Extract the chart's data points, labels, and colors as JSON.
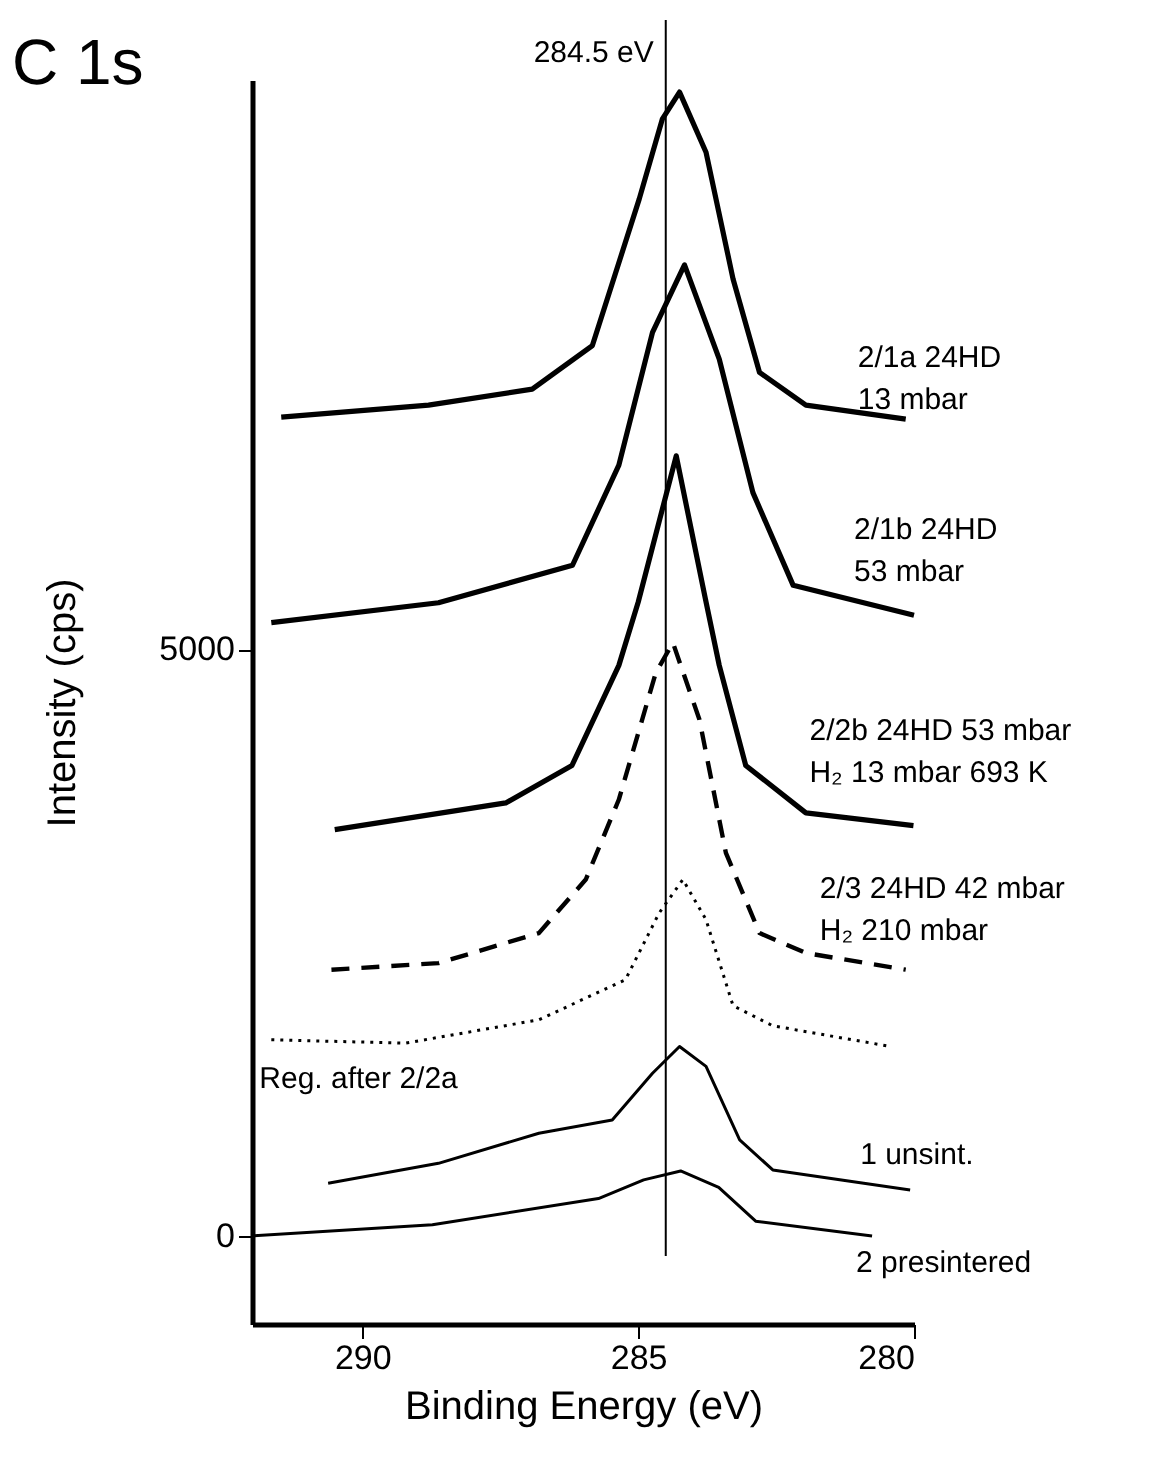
{
  "chart_data": {
    "type": "line",
    "title": "C 1s",
    "xlabel": "Binding Energy (eV)",
    "ylabel": "Intensity (cps)",
    "xlim": [
      292,
      280
    ],
    "xticks": [
      290,
      285,
      280
    ],
    "ylim": [
      -750,
      9850
    ],
    "yticks": [
      0,
      {
        "value": 5000,
        "label": "5000"
      }
    ],
    "grid": false,
    "legend": false,
    "marker": "none",
    "ref_lines": [
      {
        "axis": "x",
        "value": 284.5,
        "label": "284.5 eV",
        "color": "#000000",
        "line_style": "solid"
      }
    ],
    "series": [
      {
        "name": "2/1a 24HD\n13 mbar",
        "color": "#000000",
        "line_style": "solid",
        "x": [
          291.47,
          288.8,
          286.92,
          285.83,
          284.98,
          284.56,
          284.25,
          283.77,
          283.28,
          282.8,
          281.96,
          280.15
        ],
        "values": [
          6977,
          7080,
          7216,
          7587,
          8837,
          9519,
          9747,
          9235,
          8155,
          7358,
          7080,
          6960
        ]
      },
      {
        "name": "2/1b 24HD\n53 mbar",
        "color": "#000000",
        "line_style": "solid",
        "x": [
          291.65,
          288.62,
          286.19,
          285.35,
          284.74,
          284.16,
          283.53,
          282.92,
          282.19,
          280.0
        ],
        "values": [
          5226,
          5396,
          5715,
          6568,
          7700,
          8274,
          7472,
          6334,
          5544,
          5290
        ]
      },
      {
        "name": "2/2b 24HD 53 mbar\nH₂ 13 mbar 693 K",
        "color": "#000000",
        "line_style": "solid",
        "x": [
          290.5,
          287.4,
          286.2,
          285.35,
          285.0,
          284.31,
          283.78,
          283.53,
          283.05,
          281.96,
          280.01
        ],
        "values": [
          3463,
          3690,
          4009,
          4862,
          5400,
          6648,
          5425,
          4862,
          4009,
          3605,
          3497
        ]
      },
      {
        "name": "2/3 24HD 42 mbar\nH₂ 210 mbar",
        "color": "#000000",
        "line_style": "dashed",
        "x": [
          290.56,
          288.62,
          286.8,
          285.95,
          285.35,
          284.68,
          284.37,
          283.89,
          283.41,
          282.8,
          281.96,
          280.15
        ],
        "values": [
          2269,
          2325,
          2581,
          3037,
          3719,
          4799,
          5055,
          4401,
          3264,
          2581,
          2411,
          2269
        ]
      },
      {
        "name": "Reg. after 2/2a",
        "color": "#000000",
        "line_style": "dotted",
        "x": [
          291.65,
          289.22,
          286.8,
          285.23,
          284.62,
          284.19,
          283.77,
          283.28,
          282.56,
          280.5
        ],
        "values": [
          1672,
          1643,
          1842,
          2184,
          2752,
          3037,
          2695,
          1962,
          1791,
          1621
        ]
      },
      {
        "name": "1 unsint.",
        "color": "#000000",
        "line_style": "solid",
        "x": [
          290.62,
          288.62,
          286.8,
          285.47,
          284.74,
          284.25,
          283.77,
          283.16,
          282.56,
          280.07
        ],
        "values": [
          449,
          619,
          875,
          989,
          1387,
          1615,
          1445,
          819,
          563,
          392
        ]
      },
      {
        "name": "2 presintered",
        "color": "#000000",
        "line_style": "solid",
        "x": [
          292.0,
          288.73,
          285.72,
          284.9,
          284.23,
          283.54,
          282.87,
          280.76
        ],
        "values": [
          0,
          96,
          319,
          478,
          554,
          415,
          126,
          0
        ]
      }
    ]
  }
}
